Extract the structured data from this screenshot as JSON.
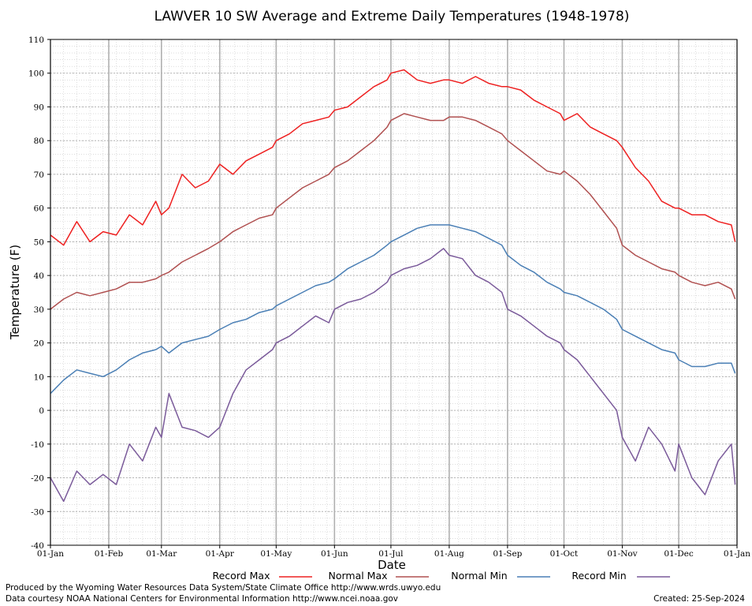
{
  "chart_data": {
    "type": "line",
    "title": "LAWVER 10 SW Average and Extreme Daily Temperatures (1948-1978)",
    "xlabel": "Date",
    "ylabel": "Temperature (F)",
    "ylim": [
      -40,
      110
    ],
    "yticks": [
      -40,
      -30,
      -20,
      -10,
      0,
      10,
      20,
      30,
      40,
      50,
      60,
      70,
      80,
      90,
      100,
      110
    ],
    "xlim": [
      1,
      366
    ],
    "xtick_labels": [
      "01-Jan",
      "01-Feb",
      "01-Mar",
      "01-Apr",
      "01-May",
      "01-Jun",
      "01-Jul",
      "01-Aug",
      "01-Sep",
      "01-Oct",
      "01-Nov",
      "01-Dec",
      "01-Jan"
    ],
    "xtick_days": [
      1,
      32,
      60,
      91,
      121,
      152,
      182,
      213,
      244,
      274,
      305,
      335,
      366
    ],
    "grid": true,
    "legend_position": "bottom",
    "series": [
      {
        "name": "Record Max",
        "color": "#ee2020",
        "x": [
          1,
          8,
          15,
          22,
          29,
          36,
          43,
          50,
          57,
          60,
          64,
          71,
          78,
          85,
          91,
          98,
          105,
          112,
          119,
          121,
          128,
          135,
          142,
          149,
          152,
          159,
          166,
          173,
          180,
          182,
          189,
          196,
          203,
          210,
          213,
          220,
          227,
          234,
          241,
          244,
          251,
          258,
          265,
          272,
          274,
          281,
          288,
          295,
          302,
          305,
          312,
          319,
          326,
          333,
          335,
          342,
          349,
          356,
          363,
          365
        ],
        "values": [
          52,
          49,
          56,
          50,
          53,
          52,
          58,
          55,
          62,
          58,
          60,
          70,
          66,
          68,
          73,
          70,
          74,
          76,
          78,
          80,
          82,
          85,
          86,
          87,
          89,
          90,
          93,
          96,
          98,
          100,
          101,
          98,
          97,
          98,
          98,
          97,
          99,
          97,
          96,
          96,
          95,
          92,
          90,
          88,
          86,
          88,
          84,
          82,
          80,
          78,
          72,
          68,
          62,
          60,
          60,
          58,
          58,
          56,
          55,
          50
        ]
      },
      {
        "name": "Normal Max",
        "color": "#b05050",
        "x": [
          1,
          8,
          15,
          22,
          29,
          36,
          43,
          50,
          57,
          60,
          64,
          71,
          78,
          85,
          91,
          98,
          105,
          112,
          119,
          121,
          128,
          135,
          142,
          149,
          152,
          159,
          166,
          173,
          180,
          182,
          189,
          196,
          203,
          210,
          213,
          220,
          227,
          234,
          241,
          244,
          251,
          258,
          265,
          272,
          274,
          281,
          288,
          295,
          302,
          305,
          312,
          319,
          326,
          333,
          335,
          342,
          349,
          356,
          363,
          365
        ],
        "values": [
          30,
          33,
          35,
          34,
          35,
          36,
          38,
          38,
          39,
          40,
          41,
          44,
          46,
          48,
          50,
          53,
          55,
          57,
          58,
          60,
          63,
          66,
          68,
          70,
          72,
          74,
          77,
          80,
          84,
          86,
          88,
          87,
          86,
          86,
          87,
          87,
          86,
          84,
          82,
          80,
          77,
          74,
          71,
          70,
          71,
          68,
          64,
          59,
          54,
          49,
          46,
          44,
          42,
          41,
          40,
          38,
          37,
          38,
          36,
          33
        ]
      },
      {
        "name": "Normal Min",
        "color": "#4a7fb5",
        "x": [
          1,
          8,
          15,
          22,
          29,
          36,
          43,
          50,
          57,
          60,
          64,
          71,
          78,
          85,
          91,
          98,
          105,
          112,
          119,
          121,
          128,
          135,
          142,
          149,
          152,
          159,
          166,
          173,
          180,
          182,
          189,
          196,
          203,
          210,
          213,
          220,
          227,
          234,
          241,
          244,
          251,
          258,
          265,
          272,
          274,
          281,
          288,
          295,
          302,
          305,
          312,
          319,
          326,
          333,
          335,
          342,
          349,
          356,
          363,
          365
        ],
        "values": [
          5,
          9,
          12,
          11,
          10,
          12,
          15,
          17,
          18,
          19,
          17,
          20,
          21,
          22,
          24,
          26,
          27,
          29,
          30,
          31,
          33,
          35,
          37,
          38,
          39,
          42,
          44,
          46,
          49,
          50,
          52,
          54,
          55,
          55,
          55,
          54,
          53,
          51,
          49,
          46,
          43,
          41,
          38,
          36,
          35,
          34,
          32,
          30,
          27,
          24,
          22,
          20,
          18,
          17,
          15,
          13,
          13,
          14,
          14,
          11
        ]
      },
      {
        "name": "Record Min",
        "color": "#7a5a9a",
        "x": [
          1,
          8,
          15,
          22,
          29,
          36,
          43,
          50,
          57,
          60,
          64,
          71,
          78,
          85,
          91,
          98,
          105,
          112,
          119,
          121,
          128,
          135,
          142,
          149,
          152,
          159,
          166,
          173,
          180,
          182,
          189,
          196,
          203,
          210,
          213,
          220,
          227,
          234,
          241,
          244,
          251,
          258,
          265,
          272,
          274,
          281,
          288,
          295,
          302,
          305,
          312,
          319,
          326,
          333,
          335,
          342,
          349,
          356,
          363,
          365
        ],
        "values": [
          -20,
          -27,
          -18,
          -22,
          -19,
          -22,
          -10,
          -15,
          -5,
          -8,
          5,
          -5,
          -6,
          -8,
          -5,
          5,
          12,
          15,
          18,
          20,
          22,
          25,
          28,
          26,
          30,
          32,
          33,
          35,
          38,
          40,
          42,
          43,
          45,
          48,
          46,
          45,
          40,
          38,
          35,
          30,
          28,
          25,
          22,
          20,
          18,
          15,
          10,
          5,
          0,
          -8,
          -15,
          -5,
          -10,
          -18,
          -10,
          -20,
          -25,
          -15,
          -10,
          -22
        ]
      }
    ]
  },
  "footer": {
    "left_line1": "Produced by the Wyoming Water Resources Data System/State Climate Office http://www.wrds.uwyo.edu",
    "left_line2": "Data courtesy NOAA National Centers for Environmental Information http://www.ncei.noaa.gov",
    "created": "Created:  25-Sep-2024"
  }
}
